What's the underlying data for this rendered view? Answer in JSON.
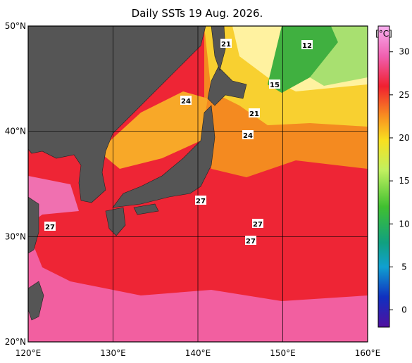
{
  "title": "Daily SSTs 19 Aug. 2026.",
  "map": {
    "lon_range": [
      120,
      160
    ],
    "lat_range": [
      20,
      50
    ],
    "lon_ticks": [
      {
        "value": 120,
        "label": "120°E"
      },
      {
        "value": 130,
        "label": "130°E"
      },
      {
        "value": 140,
        "label": "140°E"
      },
      {
        "value": 150,
        "label": "150°E"
      },
      {
        "value": 160,
        "label": "160°E"
      }
    ],
    "lat_ticks": [
      {
        "value": 50,
        "label": "50°N"
      },
      {
        "value": 40,
        "label": "40°N"
      },
      {
        "value": 30,
        "label": "30°N"
      },
      {
        "value": 20,
        "label": "20°N"
      }
    ]
  },
  "colorbar": {
    "unit": "[°C]",
    "range": [
      -2,
      33
    ],
    "ticks": [
      30,
      25,
      20,
      15,
      10,
      5,
      0
    ]
  },
  "contour_labels": [
    "21",
    "12",
    "15",
    "24",
    "21",
    "24",
    "27",
    "27",
    "27",
    "27"
  ]
}
